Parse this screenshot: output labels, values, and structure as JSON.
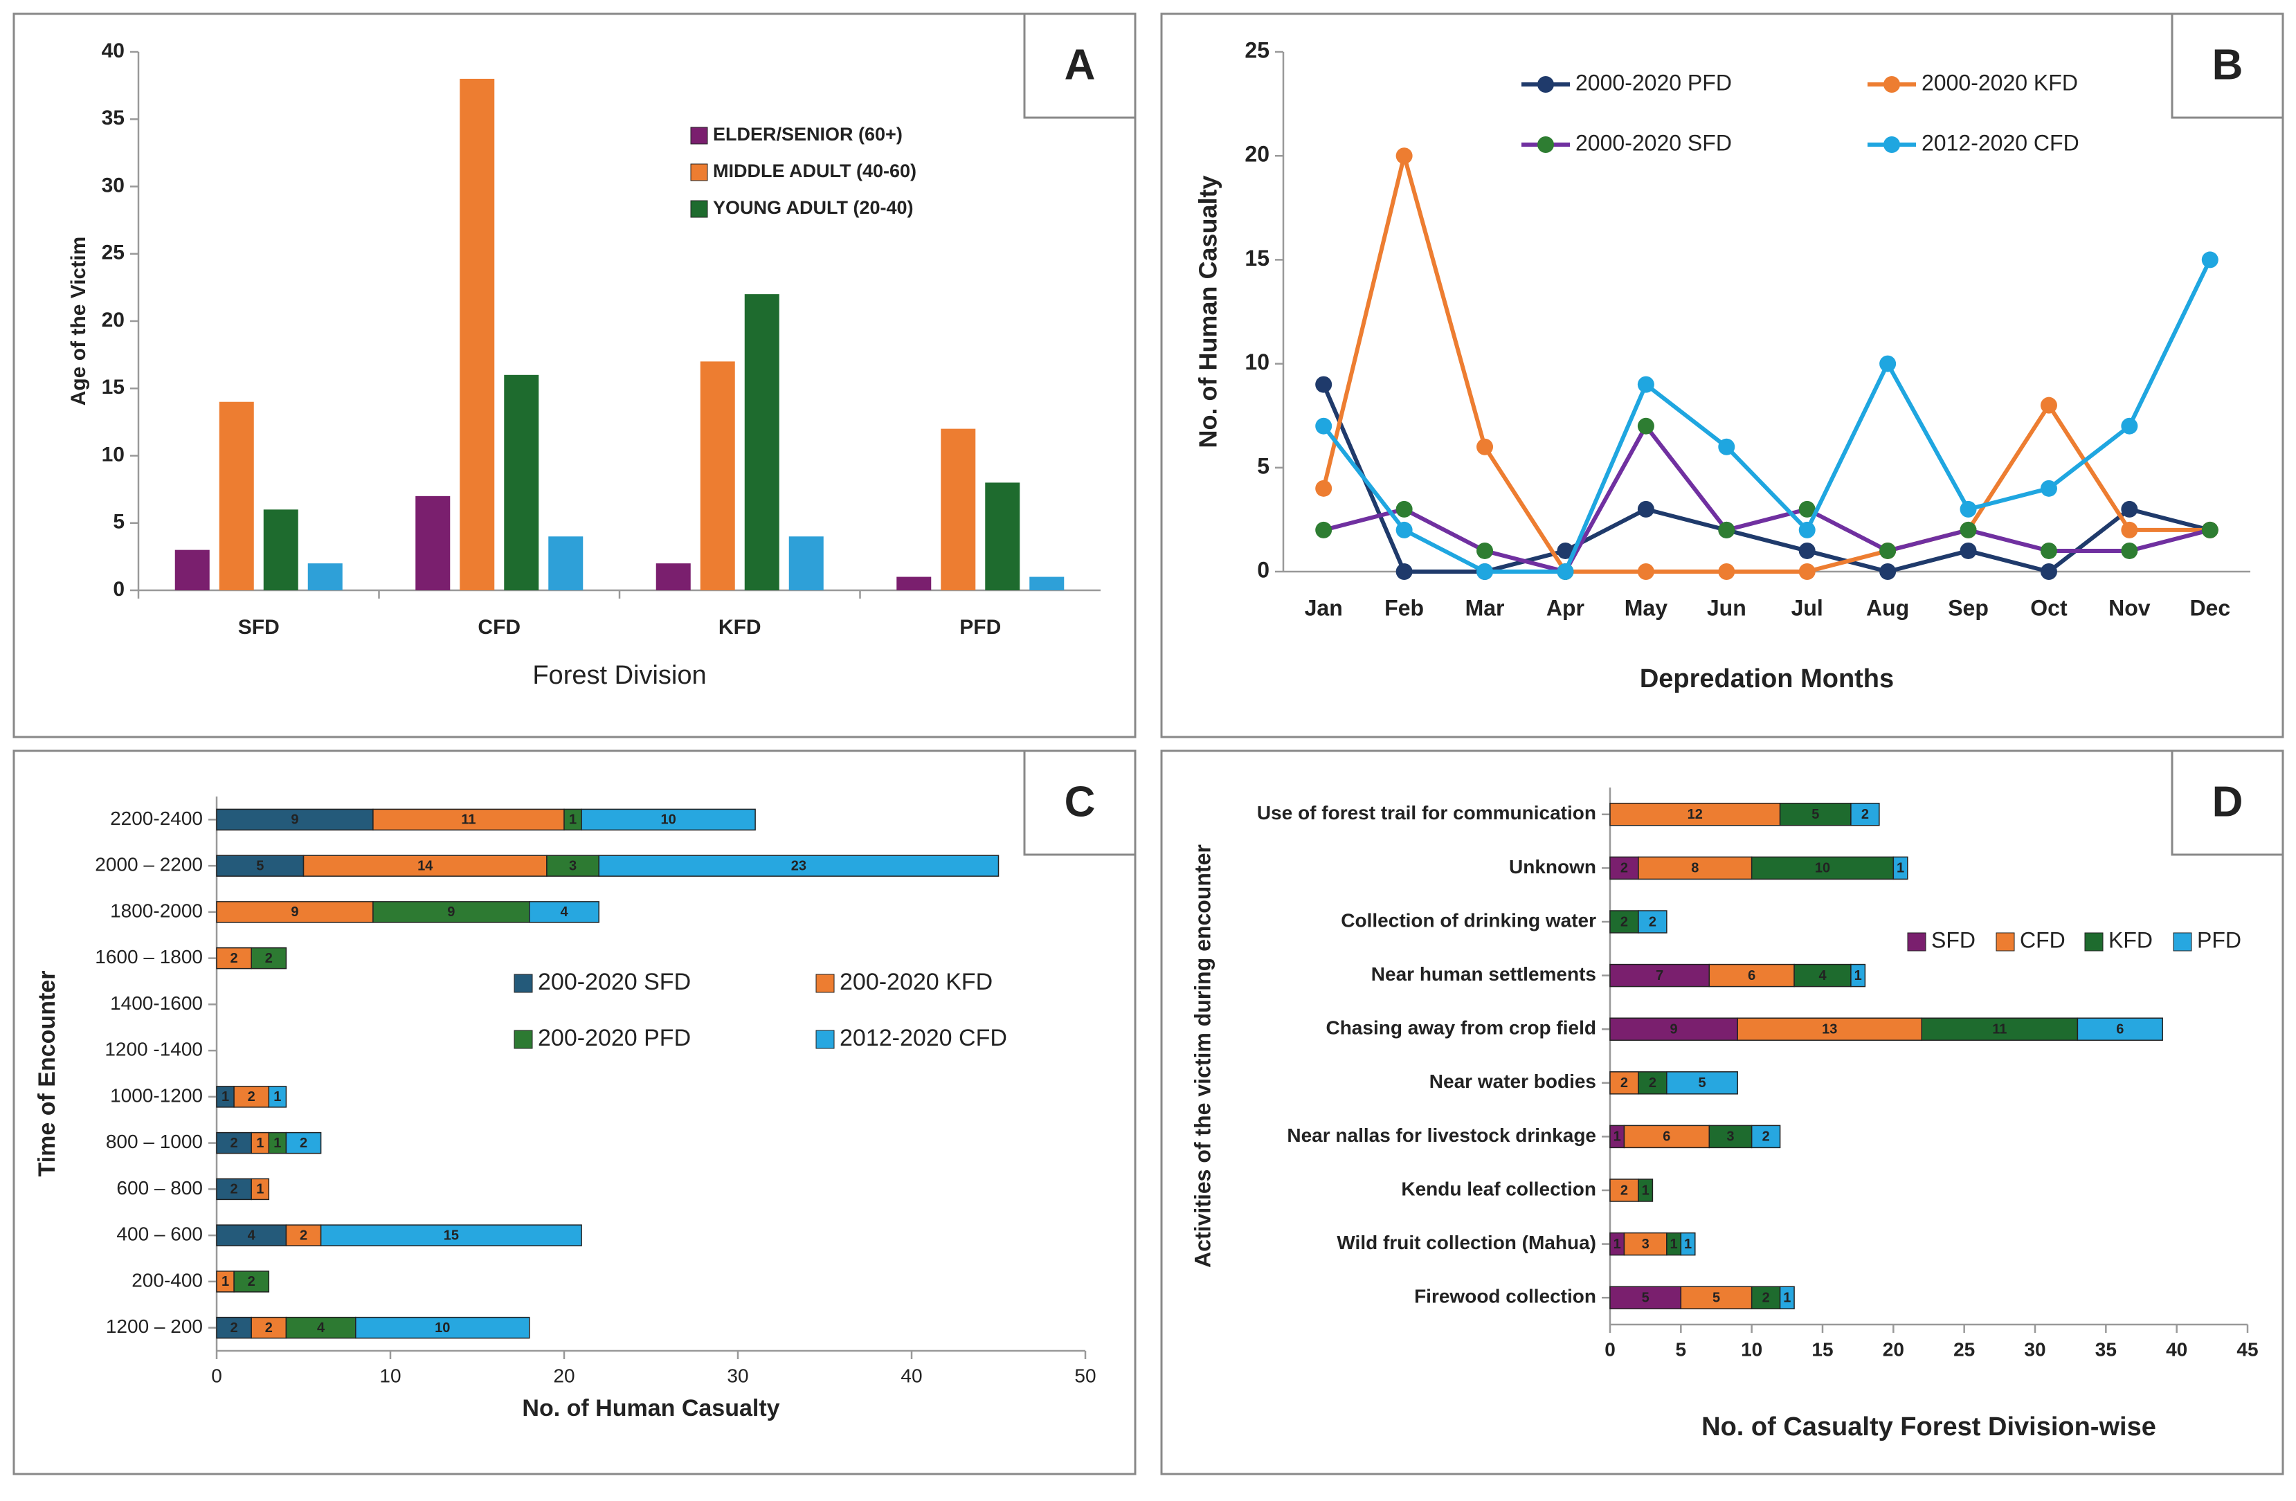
{
  "chart_data": [
    {
      "type": "bar",
      "label": "A",
      "ylabel": "Age of the Victim",
      "xlabel": "Forest Division",
      "categories": [
        "SFD",
        "CFD",
        "KFD",
        "PFD"
      ],
      "series": [
        {
          "name": "ELDER/SENIOR (60+)",
          "color": "#7a1f6e",
          "values": [
            3,
            7,
            2,
            1
          ]
        },
        {
          "name": "MIDDLE ADULT (40-60)",
          "color": "#ed7d31",
          "values": [
            14,
            38,
            17,
            12
          ]
        },
        {
          "name": "YOUNG ADULT (20-40)",
          "color": "#1e6b2e",
          "values": [
            6,
            16,
            22,
            8
          ]
        },
        {
          "color": "#2ea0d8",
          "values": [
            2,
            4,
            4,
            1
          ]
        }
      ],
      "ylim": [
        0,
        40
      ],
      "yticks": [
        0,
        5,
        10,
        15,
        20,
        25,
        30,
        35,
        40
      ]
    },
    {
      "type": "line",
      "label": "B",
      "ylabel": "No. of Human Casualty",
      "xlabel": "Depredation Months",
      "categories": [
        "Jan",
        "Feb",
        "Mar",
        "Apr",
        "May",
        "Jun",
        "Jul",
        "Aug",
        "Sep",
        "Oct",
        "Nov",
        "Dec"
      ],
      "series": [
        {
          "name": "2000-2020 PFD",
          "color": "#1f3a6b",
          "values": [
            9,
            0,
            0,
            1,
            3,
            2,
            1,
            0,
            1,
            0,
            3,
            2
          ]
        },
        {
          "name": "2000-2020 KFD",
          "color": "#ed7d31",
          "values": [
            4,
            20,
            6,
            0,
            0,
            0,
            0,
            1,
            2,
            8,
            2,
            2
          ]
        },
        {
          "name": "2000-2020 SFD",
          "color": "#7030a0",
          "marker_color": "#2e7d32",
          "values": [
            2,
            3,
            1,
            0,
            7,
            2,
            3,
            1,
            2,
            1,
            1,
            2
          ]
        },
        {
          "name": "2012-2020 CFD",
          "color": "#1fa6e0",
          "values": [
            7,
            2,
            0,
            0,
            9,
            6,
            2,
            10,
            3,
            4,
            7,
            15
          ]
        }
      ],
      "ylim": [
        0,
        25
      ],
      "yticks": [
        0,
        5,
        10,
        15,
        20,
        25
      ]
    },
    {
      "type": "stacked_barh",
      "label": "C",
      "ylabel": "Time of Encounter",
      "xlabel": "No. of Human Casualty",
      "categories": [
        "2200-2400",
        "2000 – 2200",
        "1800-2000",
        "1600 – 1800",
        "1400-1600",
        "1200 -1400",
        "1000-1200",
        "800 – 1000",
        "600 – 800",
        "400 – 600",
        "200-400",
        "1200 – 200"
      ],
      "series": [
        {
          "name": "200-2020 SFD",
          "color": "#245a7a",
          "values": [
            9,
            5,
            0,
            0,
            0,
            0,
            1,
            2,
            2,
            4,
            0,
            2
          ]
        },
        {
          "name": "200-2020 KFD",
          "color": "#ed7d31",
          "values": [
            11,
            14,
            9,
            2,
            0,
            0,
            2,
            1,
            1,
            2,
            1,
            2
          ]
        },
        {
          "name": "200-2020 PFD",
          "color": "#2d7a32",
          "values": [
            1,
            3,
            9,
            2,
            0,
            0,
            0,
            1,
            0,
            0,
            2,
            4
          ]
        },
        {
          "name": "2012-2020 CFD",
          "color": "#27a7e0",
          "values": [
            10,
            23,
            4,
            0,
            0,
            0,
            1,
            2,
            0,
            15,
            0,
            10
          ]
        }
      ],
      "xlim": [
        0,
        50
      ],
      "xticks": [
        0,
        10,
        20,
        30,
        40,
        50
      ]
    },
    {
      "type": "stacked_barh",
      "label": "D",
      "ylabel": "Activities of the victim during encounter",
      "xlabel": "No. of Casualty Forest Division-wise",
      "categories": [
        "Use of forest trail for communication",
        "Unknown",
        "Collection of drinking water",
        "Near human settlements",
        "Chasing away from crop field",
        "Near water bodies",
        "Near nallas for livestock drinkage",
        "Kendu  leaf collection",
        "Wild fruit collection (Mahua)",
        "Firewood collection"
      ],
      "series": [
        {
          "name": "SFD",
          "color": "#7a1f6e",
          "values": [
            0,
            2,
            0,
            7,
            9,
            0,
            1,
            0,
            1,
            5
          ]
        },
        {
          "name": "CFD",
          "color": "#ed7d31",
          "values": [
            12,
            8,
            0,
            6,
            13,
            2,
            6,
            2,
            3,
            5
          ]
        },
        {
          "name": "KFD",
          "color": "#1e6b2e",
          "values": [
            5,
            10,
            2,
            4,
            11,
            2,
            3,
            1,
            1,
            2
          ]
        },
        {
          "name": "PFD",
          "color": "#27a7e0",
          "values": [
            2,
            1,
            2,
            1,
            6,
            5,
            2,
            0,
            1,
            1
          ]
        }
      ],
      "xlim": [
        0,
        45
      ],
      "xticks": [
        0,
        5,
        10,
        15,
        20,
        25,
        30,
        35,
        40,
        45
      ]
    }
  ]
}
